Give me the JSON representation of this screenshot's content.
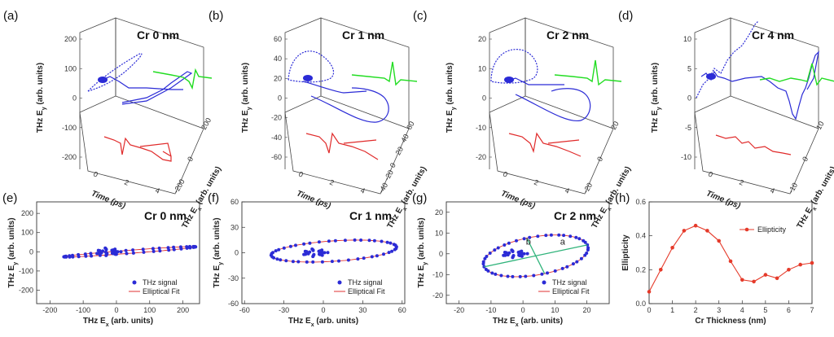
{
  "figure": {
    "colors": {
      "signal": "#2b2bd6",
      "fit": "#e03030",
      "ex": "#e02a2a",
      "ey": "#22dd22",
      "green": "#2fb37a",
      "ellipticity": "#e53a2a"
    },
    "top_panels": [
      {
        "label": "(a)",
        "title": "Cr 0 nm",
        "yticks": [
          "200",
          "100",
          "0",
          "-100",
          "-200"
        ],
        "ylabel": "THz E",
        "ylabel_sub": "y",
        "ylabel_tail": " (arb. units)",
        "xlabel": "Time (ps)",
        "xticks": [
          "0",
          "2",
          "4"
        ],
        "zlabel": "THz E",
        "zlabel_sub": "x",
        "zlabel_tail": " (arb. units)",
        "zticks": [
          "-200",
          "0",
          "200"
        ]
      },
      {
        "label": "(b)",
        "title": "Cr 1 nm",
        "yticks": [
          "60",
          "40",
          "20",
          "0",
          "-20",
          "-40",
          "-60"
        ],
        "ylabel": "THz E",
        "ylabel_sub": "y",
        "ylabel_tail": " (arb. units)",
        "xlabel": "Time (ps)",
        "xticks": [
          "0",
          "2",
          "4"
        ],
        "zlabel": "THz E",
        "zlabel_sub": "x",
        "zlabel_tail": " (arb. units)",
        "zticks": [
          "-40",
          "-20",
          "0",
          "20",
          "40",
          "60"
        ]
      },
      {
        "label": "(c)",
        "title": "Cr 2 nm",
        "yticks": [
          "20",
          "10",
          "0",
          "-10",
          "-20"
        ],
        "ylabel": "THz E",
        "ylabel_sub": "y",
        "ylabel_tail": " (arb. units)",
        "xlabel": "Time (ps)",
        "xticks": [
          "0",
          "2",
          "4"
        ],
        "zlabel": "THz E",
        "zlabel_sub": "x",
        "zlabel_tail": " (arb. units)",
        "zticks": [
          "-20",
          "0",
          "20"
        ]
      },
      {
        "label": "(d)",
        "title": "Cr 4 nm",
        "yticks": [
          "10",
          "5",
          "0",
          "-5",
          "-10"
        ],
        "ylabel": "THz E",
        "ylabel_sub": "y",
        "ylabel_tail": " (arb. units)",
        "xlabel": "Time (ps)",
        "xticks": [
          "0",
          "2",
          "4"
        ],
        "zlabel": "THz E",
        "zlabel_sub": "x",
        "zlabel_tail": " (arb. units)",
        "zticks": [
          "-10",
          "0",
          "10"
        ]
      }
    ]
  },
  "chart_data": [
    {
      "type": "scatter",
      "panel": "(e)",
      "title": "Cr 0 nm",
      "xlabel": "THz E",
      "xlabel_sub": "x",
      "xlabel_tail": " (arb. units)",
      "ylabel": "THz E",
      "ylabel_sub": "y",
      "ylabel_tail": " (arb. units)",
      "xlim": [
        -240,
        250
      ],
      "ylim": [
        -270,
        260
      ],
      "xticks": [
        -200,
        -100,
        0,
        100,
        200
      ],
      "yticks": [
        -200,
        -100,
        0,
        100,
        200
      ],
      "ellipse": {
        "cx": 40,
        "cy": 0,
        "a": 200,
        "b": 8,
        "angle_deg": 7.5
      },
      "series": [
        {
          "name": "THz signal"
        },
        {
          "name": "Elliptical Fit"
        }
      ]
    },
    {
      "type": "scatter",
      "panel": "(f)",
      "title": "Cr 1 nm",
      "xlabel": "THz E",
      "xlabel_sub": "x",
      "xlabel_tail": " (arb. units)",
      "ylabel": "THz E",
      "ylabel_sub": "y",
      "ylabel_tail": " (arb. units)",
      "xlim": [
        -62,
        62
      ],
      "ylim": [
        -60,
        60
      ],
      "xticks": [
        -60,
        -30,
        0,
        30,
        60
      ],
      "yticks": [
        -60,
        -30,
        0,
        30,
        60
      ],
      "ellipse": {
        "cx": 8,
        "cy": 2,
        "a": 48,
        "b": 12,
        "angle_deg": 6
      },
      "series": [
        {
          "name": "THz signal"
        },
        {
          "name": "Elliptical Fit"
        }
      ]
    },
    {
      "type": "scatter",
      "panel": "(g)",
      "title": "Cr 2 nm",
      "xlabel": "THz E",
      "xlabel_sub": "x",
      "xlabel_tail": " (arb. units)",
      "ylabel": "THz E",
      "ylabel_sub": "y",
      "ylabel_tail": " (arb. units)",
      "xlim": [
        -24,
        27
      ],
      "ylim": [
        -24,
        25
      ],
      "xticks": [
        -20,
        -10,
        0,
        10,
        20
      ],
      "yticks": [
        -20,
        -10,
        0,
        10,
        20
      ],
      "ellipse": {
        "cx": 4,
        "cy": -1,
        "a": 17,
        "b": 9,
        "angle_deg": 18
      },
      "annotations": [
        "a",
        "b"
      ],
      "series": [
        {
          "name": "THz signal"
        },
        {
          "name": "Elliptical Fit"
        }
      ]
    },
    {
      "type": "line",
      "panel": "(h)",
      "xlabel": "Cr Thickness (nm)",
      "ylabel": "Ellipticity",
      "xlim": [
        0,
        7
      ],
      "ylim": [
        0,
        0.6
      ],
      "xticks": [
        0,
        1,
        2,
        3,
        4,
        5,
        6,
        7
      ],
      "yticks": [
        0.0,
        0.2,
        0.4,
        0.6
      ],
      "x": [
        0,
        0.5,
        1,
        1.5,
        2,
        2.5,
        3,
        3.5,
        4,
        4.5,
        5,
        5.5,
        6,
        6.5,
        7
      ],
      "series": [
        {
          "name": "Ellipticity",
          "values": [
            0.07,
            0.2,
            0.33,
            0.43,
            0.46,
            0.43,
            0.37,
            0.25,
            0.14,
            0.13,
            0.17,
            0.15,
            0.2,
            0.23,
            0.24
          ]
        }
      ]
    }
  ]
}
